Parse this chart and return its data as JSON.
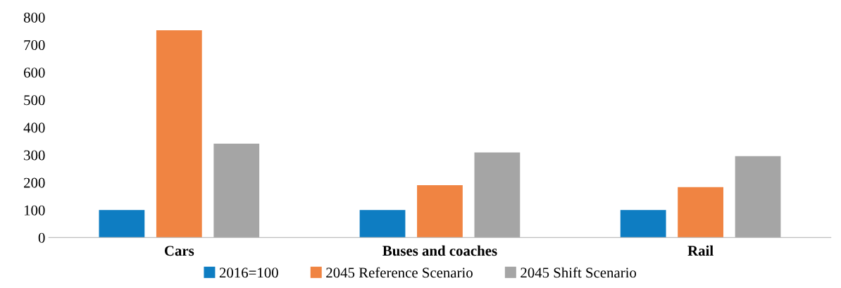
{
  "chart_data": {
    "type": "bar",
    "categories": [
      "Cars",
      "Buses and coaches",
      "Rail"
    ],
    "series": [
      {
        "name": "2016=100",
        "color": "#0e7dc2",
        "values": [
          100,
          100,
          100
        ]
      },
      {
        "name": "2045 Reference Scenario",
        "color": "#f08442",
        "values": [
          753,
          190,
          183
        ]
      },
      {
        "name": "2045 Shift Scenario",
        "color": "#a5a5a5",
        "values": [
          341,
          309,
          296
        ]
      }
    ],
    "ylim": [
      0,
      800
    ],
    "yticks": [
      0,
      100,
      200,
      300,
      400,
      500,
      600,
      700,
      800
    ],
    "grid": false,
    "legend": "bottom"
  }
}
